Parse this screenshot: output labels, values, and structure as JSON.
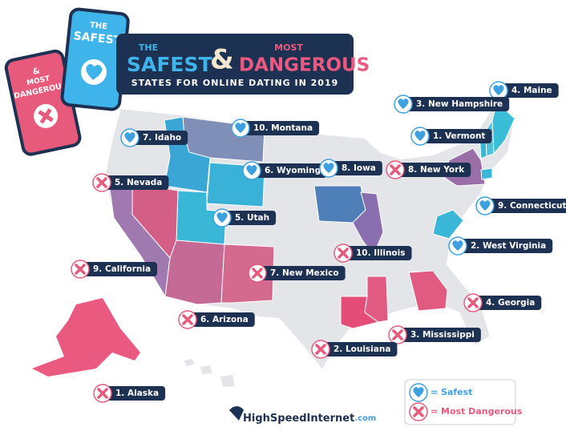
{
  "header": {
    "the": "THE",
    "safest": "SAFEST",
    "ampersand": "&",
    "most": "MOST",
    "dangerous": "DANGEROUS",
    "subtitle": "STATES FOR ONLINE DATING IN 2019"
  },
  "phones": {
    "safe": [
      "THE",
      "SAFEST"
    ],
    "danger": [
      "&",
      "MOST",
      "DANGEROUS"
    ]
  },
  "labels": [
    {
      "text": "4. Maine",
      "kind": "safe"
    },
    {
      "text": "3. New Hampshire",
      "kind": "safe"
    },
    {
      "text": "1. Vermont",
      "kind": "safe"
    },
    {
      "text": "10. Montana",
      "kind": "safe"
    },
    {
      "text": "7. Idaho",
      "kind": "safe"
    },
    {
      "text": "6. Wyoming",
      "kind": "safe"
    },
    {
      "text": "8. Iowa",
      "kind": "safe"
    },
    {
      "text": "9. Connecticut",
      "kind": "safe"
    },
    {
      "text": "5. Utah",
      "kind": "safe"
    },
    {
      "text": "2. West Virginia",
      "kind": "safe"
    },
    {
      "text": "8. New York",
      "kind": "danger"
    },
    {
      "text": "5. Nevada",
      "kind": "danger"
    },
    {
      "text": "10. Illinois",
      "kind": "danger"
    },
    {
      "text": "9. California",
      "kind": "danger"
    },
    {
      "text": "7. New Mexico",
      "kind": "danger"
    },
    {
      "text": "4. Georgia",
      "kind": "danger"
    },
    {
      "text": "6. Arizona",
      "kind": "danger"
    },
    {
      "text": "3. Mississippi",
      "kind": "danger"
    },
    {
      "text": "2. Louisiana",
      "kind": "danger"
    },
    {
      "text": "1. Alaska",
      "kind": "danger"
    }
  ],
  "legend": {
    "safe": "= Safest",
    "danger": "= Most Dangerous"
  },
  "brand": {
    "name": "HighSpeedInternet",
    "suffix": ".com"
  }
}
